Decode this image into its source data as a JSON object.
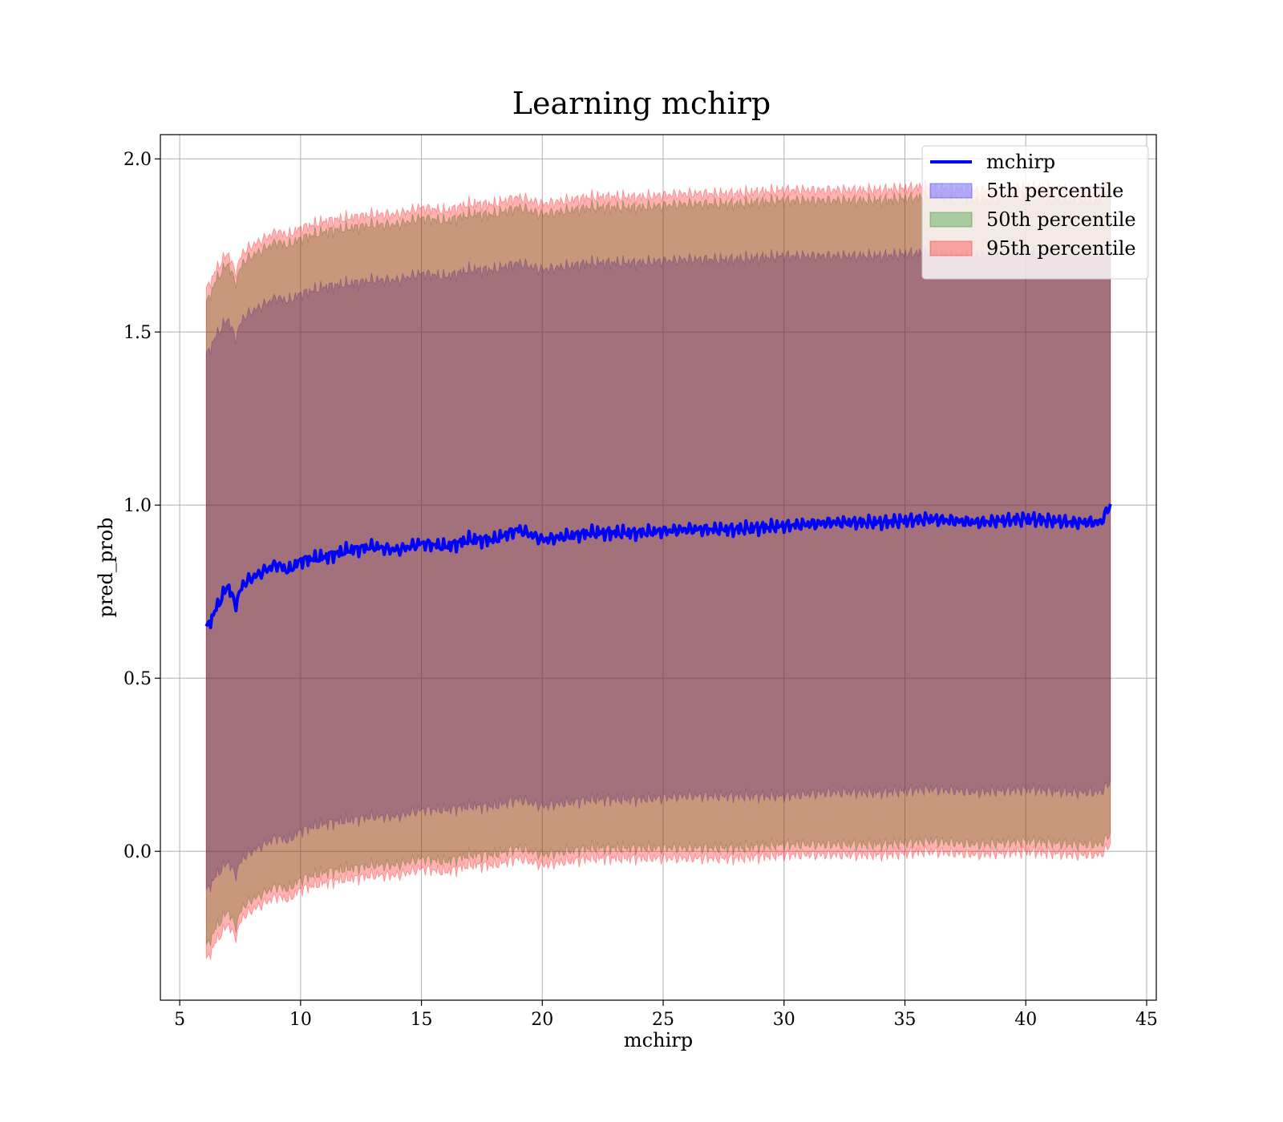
{
  "chart_data": {
    "type": "area",
    "title": "Learning mchirp",
    "xlabel": "mchirp",
    "ylabel": "pred_prob",
    "xlim": [
      4.2,
      45.4
    ],
    "ylim": [
      -0.43,
      2.07
    ],
    "xticks": [
      5,
      10,
      15,
      20,
      25,
      30,
      35,
      40,
      45
    ],
    "yticks": [
      0.0,
      0.5,
      1.0,
      1.5,
      2.0
    ],
    "xtick_labels": [
      "5",
      "10",
      "15",
      "20",
      "25",
      "30",
      "35",
      "40",
      "45"
    ],
    "ytick_labels": [
      "0.0",
      "0.5",
      "1.0",
      "1.5",
      "2.0"
    ],
    "grid": true,
    "legend_position": "top-right",
    "x": [
      6.1,
      6.5,
      7.0,
      7.3,
      7.6,
      8.0,
      8.5,
      9.0,
      9.5,
      10.0,
      11,
      12,
      13,
      14,
      15,
      16,
      17,
      18,
      19,
      20,
      22,
      24,
      26,
      28,
      30,
      32,
      34,
      36,
      38,
      40,
      42,
      43.1,
      43.5
    ],
    "series": [
      {
        "name": "mchirp",
        "kind": "line",
        "color": "#0000ff",
        "values": [
          0.64,
          0.7,
          0.77,
          0.71,
          0.77,
          0.79,
          0.81,
          0.83,
          0.81,
          0.84,
          0.85,
          0.87,
          0.88,
          0.87,
          0.89,
          0.88,
          0.9,
          0.9,
          0.93,
          0.9,
          0.92,
          0.92,
          0.93,
          0.93,
          0.94,
          0.95,
          0.95,
          0.96,
          0.95,
          0.96,
          0.95,
          0.95,
          1.0
        ]
      },
      {
        "name": "5th percentile",
        "kind": "band",
        "color": "#0000ff",
        "lower": [
          -0.12,
          -0.07,
          -0.03,
          -0.07,
          -0.02,
          0.0,
          0.02,
          0.04,
          0.03,
          0.06,
          0.08,
          0.09,
          0.1,
          0.1,
          0.12,
          0.12,
          0.13,
          0.13,
          0.15,
          0.13,
          0.15,
          0.15,
          0.16,
          0.16,
          0.16,
          0.17,
          0.17,
          0.18,
          0.17,
          0.18,
          0.17,
          0.17,
          0.2
        ],
        "upper": [
          1.43,
          1.49,
          1.54,
          1.48,
          1.54,
          1.56,
          1.58,
          1.6,
          1.59,
          1.61,
          1.63,
          1.64,
          1.65,
          1.65,
          1.67,
          1.66,
          1.68,
          1.68,
          1.7,
          1.68,
          1.7,
          1.7,
          1.71,
          1.71,
          1.72,
          1.72,
          1.72,
          1.73,
          1.72,
          1.73,
          1.72,
          1.72,
          1.74
        ]
      },
      {
        "name": "50th percentile",
        "kind": "band",
        "color": "#008000",
        "lower": [
          -0.28,
          -0.22,
          -0.17,
          -0.22,
          -0.16,
          -0.14,
          -0.12,
          -0.1,
          -0.11,
          -0.08,
          -0.06,
          -0.05,
          -0.04,
          -0.04,
          -0.02,
          -0.03,
          -0.01,
          -0.01,
          0.01,
          -0.01,
          0.01,
          0.01,
          0.01,
          0.01,
          0.02,
          0.02,
          0.02,
          0.03,
          0.02,
          0.03,
          0.02,
          0.02,
          0.05
        ],
        "upper": [
          1.58,
          1.65,
          1.7,
          1.64,
          1.7,
          1.72,
          1.74,
          1.76,
          1.75,
          1.77,
          1.79,
          1.8,
          1.81,
          1.81,
          1.83,
          1.82,
          1.84,
          1.84,
          1.86,
          1.84,
          1.86,
          1.86,
          1.87,
          1.87,
          1.88,
          1.88,
          1.88,
          1.89,
          1.88,
          1.89,
          1.88,
          1.88,
          1.9
        ]
      },
      {
        "name": "95th percentile",
        "kind": "band",
        "color": "#ff0000",
        "lower": [
          -0.32,
          -0.26,
          -0.21,
          -0.25,
          -0.19,
          -0.17,
          -0.15,
          -0.13,
          -0.14,
          -0.11,
          -0.09,
          -0.08,
          -0.07,
          -0.07,
          -0.05,
          -0.06,
          -0.04,
          -0.04,
          -0.02,
          -0.04,
          -0.02,
          -0.02,
          -0.02,
          -0.02,
          -0.01,
          -0.01,
          -0.01,
          0.0,
          -0.01,
          0.0,
          -0.01,
          -0.01,
          0.02
        ],
        "upper": [
          1.62,
          1.68,
          1.73,
          1.67,
          1.73,
          1.75,
          1.77,
          1.79,
          1.78,
          1.8,
          1.82,
          1.83,
          1.84,
          1.84,
          1.86,
          1.85,
          1.87,
          1.87,
          1.89,
          1.87,
          1.89,
          1.89,
          1.9,
          1.9,
          1.91,
          1.91,
          1.91,
          1.92,
          1.91,
          1.92,
          1.91,
          1.91,
          1.93
        ]
      }
    ]
  }
}
